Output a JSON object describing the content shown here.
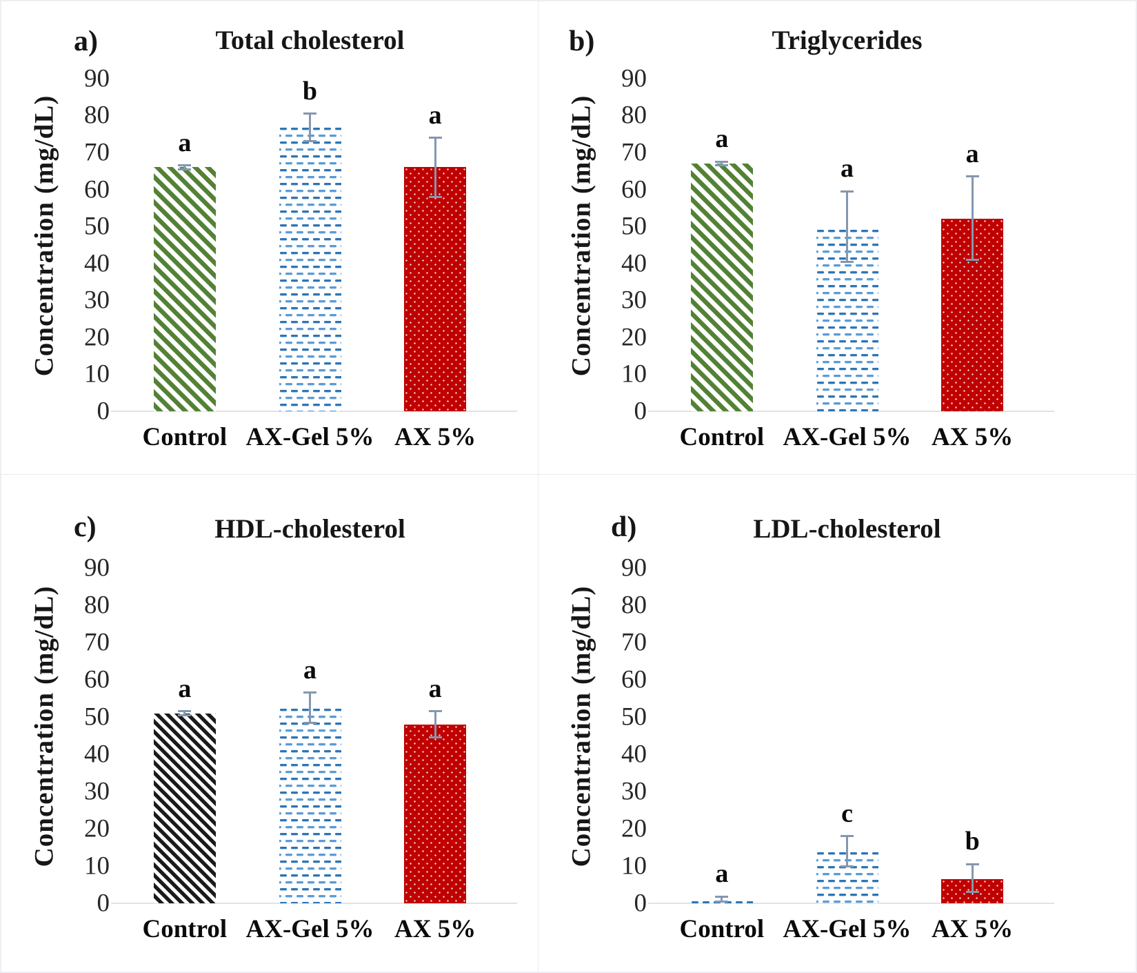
{
  "figure": {
    "background": "#ffffff",
    "border_color": "#e8eaee",
    "baseline_color": "#dfe3e8",
    "error_bar_color": "#8497B0",
    "y_axis": {
      "min": 0,
      "max": 90,
      "tick_step": 10,
      "ticks": [
        0,
        10,
        20,
        30,
        40,
        50,
        60,
        70,
        80,
        90
      ]
    },
    "categories": [
      "Control",
      "AX-Gel 5%",
      "AX 5%"
    ],
    "patterns": {
      "green-hatch": {
        "color": "#538135",
        "desc": "green diagonal stripes on white"
      },
      "black-hatch": {
        "color": "#1a1a1a",
        "desc": "black diagonal stripes on white"
      },
      "blue-dash": {
        "color": "#2E75B6",
        "color2": "#5B9BD5",
        "desc": "blue staggered horizontal dashes on white"
      },
      "red-dot": {
        "color": "#C00000",
        "dot": "#ffffff",
        "desc": "dark red with small white dots"
      }
    }
  },
  "chart_data": [
    {
      "type": "bar",
      "panel_letter": "a)",
      "title": "Total cholesterol",
      "ylabel": "Concentration (mg/dL)",
      "ylim": [
        0,
        90
      ],
      "grid": false,
      "legend": "none",
      "categories": [
        "Control",
        "AX-Gel 5%",
        "AX 5%"
      ],
      "values": [
        66,
        77,
        66
      ],
      "errors": [
        {
          "low": 65.5,
          "high": 66.5
        },
        {
          "low": 73,
          "high": 80.5
        },
        {
          "low": 58,
          "high": 74
        }
      ],
      "sig_letters": [
        "a",
        "b",
        "a"
      ],
      "bar_styles": [
        "green-hatch",
        "blue-dash",
        "red-dot"
      ]
    },
    {
      "type": "bar",
      "panel_letter": "b)",
      "title": "Triglycerides",
      "ylabel": "Concentration (mg/dL)",
      "ylim": [
        0,
        90
      ],
      "grid": false,
      "legend": "none",
      "categories": [
        "Control",
        "AX-Gel 5%",
        "AX 5%"
      ],
      "values": [
        67,
        49.5,
        52
      ],
      "errors": [
        {
          "low": 66.5,
          "high": 67.5
        },
        {
          "low": 40.5,
          "high": 59.5
        },
        {
          "low": 41,
          "high": 63.5
        }
      ],
      "sig_letters": [
        "a",
        "a",
        "a"
      ],
      "bar_styles": [
        "green-hatch",
        "blue-dash",
        "red-dot"
      ]
    },
    {
      "type": "bar",
      "panel_letter": "c)",
      "title": "HDL-cholesterol",
      "ylabel": "Concentration (mg/dL)",
      "ylim": [
        0,
        90
      ],
      "grid": false,
      "legend": "none",
      "categories": [
        "Control",
        "AX-Gel 5%",
        "AX 5%"
      ],
      "values": [
        51,
        52.5,
        48
      ],
      "errors": [
        {
          "low": 50.5,
          "high": 51.5
        },
        {
          "low": 48.5,
          "high": 56.5
        },
        {
          "low": 44.5,
          "high": 51.5
        }
      ],
      "sig_letters": [
        "a",
        "a",
        "a"
      ],
      "bar_styles": [
        "black-hatch",
        "blue-dash",
        "red-dot"
      ]
    },
    {
      "type": "bar",
      "panel_letter": "d)",
      "title": "LDL-cholesterol",
      "ylabel": "Concentration (mg/dL)",
      "ylim": [
        0,
        90
      ],
      "grid": false,
      "legend": "none",
      "categories": [
        "Control",
        "AX-Gel 5%",
        "AX 5%"
      ],
      "values": [
        1,
        14,
        6.5
      ],
      "errors": [
        {
          "low": 0.5,
          "high": 1.8
        },
        {
          "low": 10,
          "high": 18
        },
        {
          "low": 3,
          "high": 10.5
        }
      ],
      "sig_letters": [
        "a",
        "c",
        "b"
      ],
      "bar_styles": [
        "blue-dash",
        "blue-dash",
        "red-dot"
      ]
    }
  ]
}
